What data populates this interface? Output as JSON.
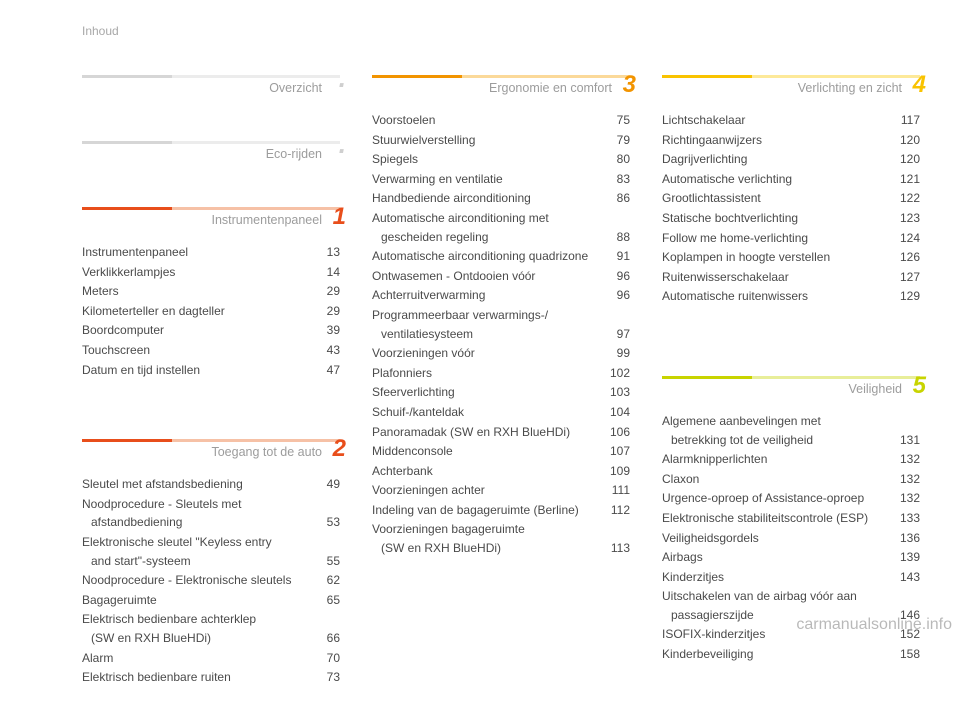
{
  "page_label": "Inhoud",
  "watermark": "carmanualsonline.info",
  "badge_colors": {
    "none_dot": "#cfcfcf",
    "1": "#e84e1b",
    "2": "#e84e1b",
    "3": "#f29400",
    "4": "#f9c300",
    "5": "#c8d400"
  },
  "bar_colors": {
    "none": [
      "#d6d6d6",
      "#ececec"
    ],
    "1": [
      "#e84e1b",
      "#f6c1a6"
    ],
    "2": [
      "#e84e1b",
      "#f6c1a6"
    ],
    "3": [
      "#f29400",
      "#fbd999"
    ],
    "4": [
      "#f9c300",
      "#fde999"
    ],
    "5": [
      "#c8d400",
      "#e8ee99"
    ]
  },
  "columns": [
    {
      "sections": [
        {
          "title": "Overzicht",
          "badge": null,
          "entries": []
        },
        {
          "title": "Eco-rijden",
          "badge": null,
          "entries": []
        },
        {
          "title": "Instrumentenpaneel",
          "badge": "1",
          "entries": [
            {
              "label": "Instrumentenpaneel",
              "page": 13
            },
            {
              "label": "Verklikkerlampjes",
              "page": 14
            },
            {
              "label": "Meters",
              "page": 29
            },
            {
              "label": "Kilometerteller en dagteller",
              "page": 29
            },
            {
              "label": "Boordcomputer",
              "page": 39
            },
            {
              "label": "Touchscreen",
              "page": 43
            },
            {
              "label": "Datum en tijd instellen",
              "page": 47
            }
          ]
        },
        {
          "title": "Toegang tot de auto",
          "badge": "2",
          "entries": [
            {
              "label": "Sleutel met afstandsbediening",
              "page": 49
            },
            {
              "label": "Noodprocedure - Sleutels met",
              "sub": "afstandbediening",
              "page": 53
            },
            {
              "label": "Elektronische sleutel \"Keyless entry",
              "sub": "and start\"-systeem",
              "page": 55
            },
            {
              "label": "Noodprocedure - Elektronische sleutels",
              "page": 62
            },
            {
              "label": "Bagageruimte",
              "page": 65
            },
            {
              "label": "Elektrisch bedienbare achterklep",
              "sub": "(SW en RXH BlueHDi)",
              "page": 66
            },
            {
              "label": "Alarm",
              "page": 70
            },
            {
              "label": "Elektrisch bedienbare ruiten",
              "page": 73
            }
          ]
        }
      ]
    },
    {
      "sections": [
        {
          "title": "Ergonomie en comfort",
          "badge": "3",
          "entries": [
            {
              "label": "Voorstoelen",
              "page": 75
            },
            {
              "label": "Stuurwielverstelling",
              "page": 79
            },
            {
              "label": "Spiegels",
              "page": 80
            },
            {
              "label": "Verwarming en ventilatie",
              "page": 83
            },
            {
              "label": "Handbediende airconditioning",
              "page": 86
            },
            {
              "label": "Automatische airconditioning met",
              "sub": "gescheiden regeling",
              "page": 88
            },
            {
              "label": "Automatische airconditioning quadrizone",
              "page": 91
            },
            {
              "label": "Ontwasemen - Ontdooien vóór",
              "page": 96
            },
            {
              "label": "Achterruitverwarming",
              "page": 96
            },
            {
              "label": "Programmeerbaar verwarmings-/",
              "sub": "ventilatiesysteem",
              "page": 97
            },
            {
              "label": "Voorzieningen vóór",
              "page": 99
            },
            {
              "label": "Plafonniers",
              "page": 102
            },
            {
              "label": "Sfeerverlichting",
              "page": 103
            },
            {
              "label": "Schuif-/kanteldak",
              "page": 104
            },
            {
              "label": "Panoramadak (SW en RXH BlueHDi)",
              "page": 106
            },
            {
              "label": "Middenconsole",
              "page": 107
            },
            {
              "label": "Achterbank",
              "page": 109
            },
            {
              "label": "Voorzieningen achter",
              "page": 111
            },
            {
              "label": "Indeling van de bagageruimte (Berline)",
              "page": 112
            },
            {
              "label": "Voorzieningen bagageruimte",
              "sub": "(SW en RXH BlueHDi)",
              "page": 113
            }
          ]
        }
      ]
    },
    {
      "sections": [
        {
          "title": "Verlichting en zicht",
          "badge": "4",
          "entries": [
            {
              "label": "Lichtschakelaar",
              "page": 117
            },
            {
              "label": "Richtingaanwijzers",
              "page": 120
            },
            {
              "label": "Dagrijverlichting",
              "page": 120
            },
            {
              "label": "Automatische verlichting",
              "page": 121
            },
            {
              "label": "Grootlichtassistent",
              "page": 122
            },
            {
              "label": "Statische bochtverlichting",
              "page": 123
            },
            {
              "label": "Follow me home-verlichting",
              "page": 124
            },
            {
              "label": "Koplampen in hoogte verstellen",
              "page": 126
            },
            {
              "label": "Ruitenwisserschakelaar",
              "page": 127
            },
            {
              "label": "Automatische ruitenwissers",
              "page": 129
            }
          ]
        },
        {
          "title": "Veiligheid",
          "badge": "5",
          "entries": [
            {
              "label": "Algemene aanbevelingen met",
              "sub": "betrekking tot de veiligheid",
              "page": 131
            },
            {
              "label": "Alarmknipperlichten",
              "page": 132
            },
            {
              "label": "Claxon",
              "page": 132
            },
            {
              "label": "Urgence-oproep of Assistance-oproep",
              "page": 132
            },
            {
              "label": "Elektronische stabiliteitscontrole (ESP)",
              "page": 133
            },
            {
              "label": "Veiligheidsgordels",
              "page": 136
            },
            {
              "label": "Airbags",
              "page": 139
            },
            {
              "label": "Kinderzitjes",
              "page": 143
            },
            {
              "label": "Uitschakelen van de airbag vóór aan",
              "sub": "passagierszijde",
              "page": 146
            },
            {
              "label": "ISOFIX-kinderzitjes",
              "page": 152
            },
            {
              "label": "Kinderbeveiliging",
              "page": 158
            }
          ]
        }
      ]
    }
  ]
}
